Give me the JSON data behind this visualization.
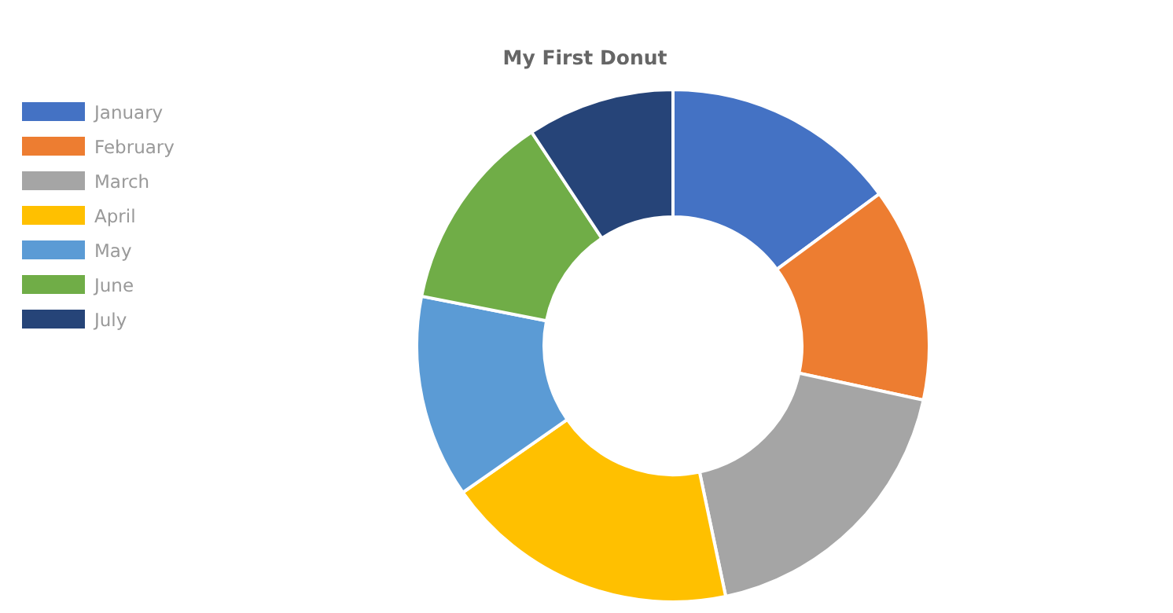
{
  "chart_data": {
    "type": "donut",
    "title": "My First Donut",
    "categories": [
      "January",
      "February",
      "March",
      "April",
      "May",
      "June",
      "July"
    ],
    "values": [
      14.9,
      13.5,
      18.3,
      18.6,
      12.8,
      12.6,
      9.3
    ],
    "colors": [
      "#4472c4",
      "#ed7d31",
      "#a5a5a5",
      "#ffc000",
      "#5b9bd5",
      "#70ad47",
      "#264478"
    ],
    "legend": "top left"
  }
}
